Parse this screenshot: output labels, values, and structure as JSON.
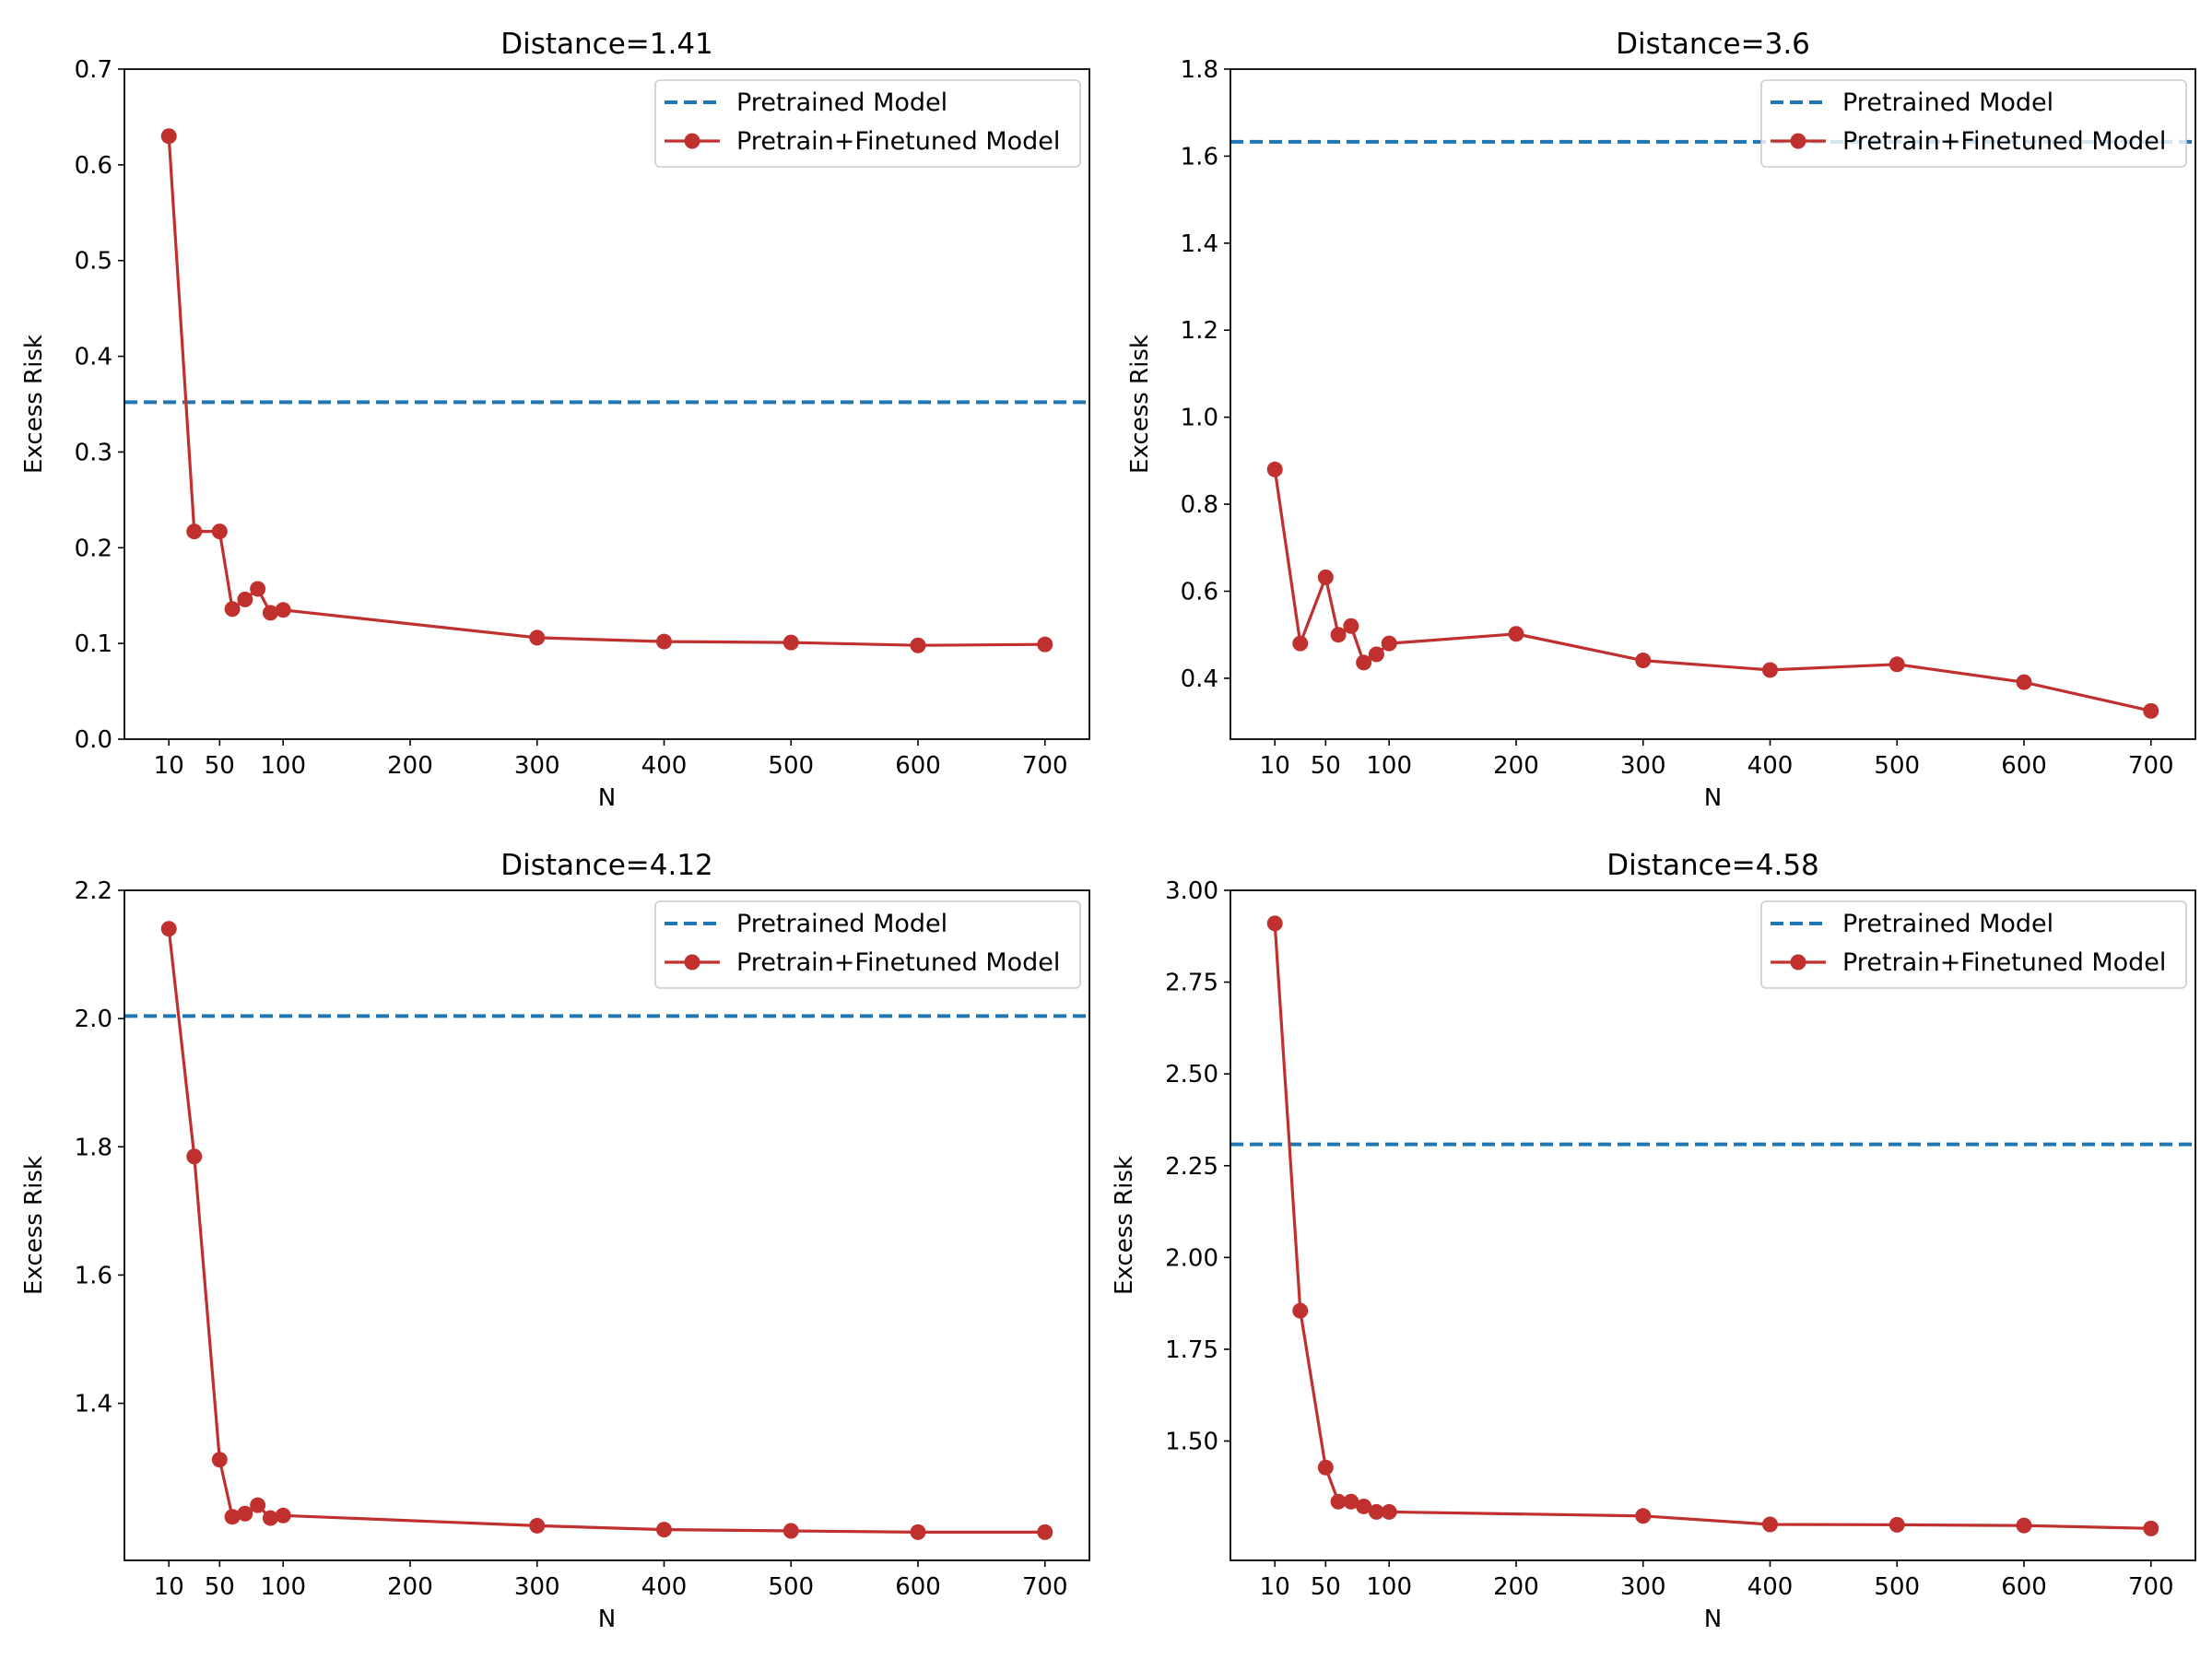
{
  "chart_data": [
    {
      "type": "line",
      "title": "Distance=1.41",
      "xlabel": "N",
      "ylabel": "Excess Risk",
      "xlim": [
        -25,
        735
      ],
      "ylim": [
        0,
        0.7
      ],
      "xticks": [
        10,
        50,
        100,
        200,
        300,
        400,
        500,
        600,
        700
      ],
      "yticks": [
        "0.0",
        "0.1",
        "0.2",
        "0.3",
        "0.4",
        "0.5",
        "0.6",
        "0.7"
      ],
      "grid": false,
      "legend": "top-right",
      "baseline": {
        "name": "Pretrained Model",
        "value": 0.352,
        "color": "#1f77b4",
        "style": "dashed"
      },
      "series": [
        {
          "name": "Pretrain+Finetuned Model",
          "color": "#c0302f",
          "marker": "circle",
          "x": [
            10,
            30,
            50,
            60,
            70,
            80,
            90,
            100,
            300,
            400,
            500,
            600,
            700
          ],
          "y": [
            0.63,
            0.217,
            0.217,
            0.136,
            0.146,
            0.157,
            0.132,
            0.135,
            0.106,
            0.102,
            0.101,
            0.098,
            0.099
          ]
        }
      ]
    },
    {
      "type": "line",
      "title": "Distance=3.6",
      "xlabel": "N",
      "ylabel": "Excess Risk",
      "xlim": [
        -25,
        735
      ],
      "ylim": [
        0.26,
        1.8
      ],
      "xticks": [
        10,
        50,
        100,
        200,
        300,
        400,
        500,
        600,
        700
      ],
      "yticks": [
        "0.4",
        "0.6",
        "0.8",
        "1.0",
        "1.2",
        "1.4",
        "1.6",
        "1.8"
      ],
      "grid": false,
      "legend": "top-right",
      "baseline": {
        "name": "Pretrained Model",
        "value": 1.633,
        "color": "#1f77b4",
        "style": "dashed"
      },
      "series": [
        {
          "name": "Pretrain+Finetuned Model",
          "color": "#c0302f",
          "marker": "circle",
          "x": [
            10,
            30,
            50,
            60,
            70,
            80,
            90,
            100,
            200,
            300,
            400,
            500,
            600,
            700
          ],
          "y": [
            0.88,
            0.48,
            0.632,
            0.5,
            0.52,
            0.436,
            0.455,
            0.48,
            0.502,
            0.441,
            0.419,
            0.432,
            0.391,
            0.325
          ]
        }
      ]
    },
    {
      "type": "line",
      "title": "Distance=4.12",
      "xlabel": "N",
      "ylabel": "Excess Risk",
      "xlim": [
        -25,
        735
      ],
      "ylim": [
        1.155,
        2.2
      ],
      "xticks": [
        10,
        50,
        100,
        200,
        300,
        400,
        500,
        600,
        700
      ],
      "yticks": [
        "1.4",
        "1.6",
        "1.8",
        "2.0",
        "2.2"
      ],
      "grid": false,
      "legend": "top-right",
      "baseline": {
        "name": "Pretrained Model",
        "value": 2.004,
        "color": "#1f77b4",
        "style": "dashed"
      },
      "series": [
        {
          "name": "Pretrain+Finetuned Model",
          "color": "#c0302f",
          "marker": "circle",
          "x": [
            10,
            30,
            50,
            60,
            70,
            80,
            90,
            100,
            300,
            400,
            500,
            600,
            700
          ],
          "y": [
            2.14,
            1.785,
            1.312,
            1.223,
            1.228,
            1.241,
            1.221,
            1.225,
            1.209,
            1.203,
            1.201,
            1.199,
            1.199
          ]
        }
      ]
    },
    {
      "type": "line",
      "title": "Distance=4.58",
      "xlabel": "N",
      "ylabel": "Excess Risk",
      "xlim": [
        -25,
        735
      ],
      "ylim": [
        1.175,
        3.0
      ],
      "xticks": [
        10,
        50,
        100,
        200,
        300,
        400,
        500,
        600,
        700
      ],
      "yticks": [
        "1.50",
        "1.75",
        "2.00",
        "2.25",
        "2.50",
        "2.75",
        "3.00"
      ],
      "grid": false,
      "legend": "top-right",
      "baseline": {
        "name": "Pretrained Model",
        "value": 2.308,
        "color": "#1f77b4",
        "style": "dashed"
      },
      "series": [
        {
          "name": "Pretrain+Finetuned Model",
          "color": "#c0302f",
          "marker": "circle",
          "x": [
            10,
            30,
            50,
            60,
            70,
            80,
            90,
            100,
            300,
            400,
            500,
            600,
            700
          ],
          "y": [
            2.91,
            1.855,
            1.428,
            1.335,
            1.335,
            1.322,
            1.307,
            1.307,
            1.296,
            1.273,
            1.272,
            1.27,
            1.262
          ]
        }
      ]
    }
  ]
}
